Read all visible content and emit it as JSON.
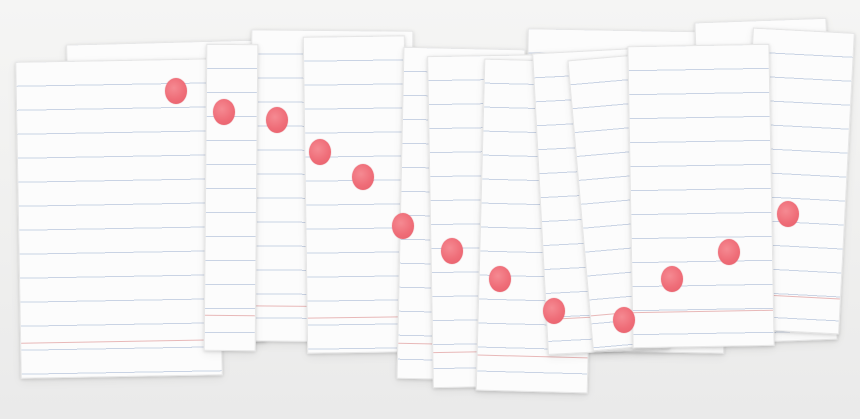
{
  "scene": {
    "description_tag": "photo",
    "paper_color": "#fcfcfc",
    "rule_color": "#c9d3e4",
    "margin_rule_color": "#e8b8b8",
    "dot_color": "#ef6d78",
    "background_color": "#f3f3f2"
  },
  "sheets_count": 14,
  "dots_count": 13
}
